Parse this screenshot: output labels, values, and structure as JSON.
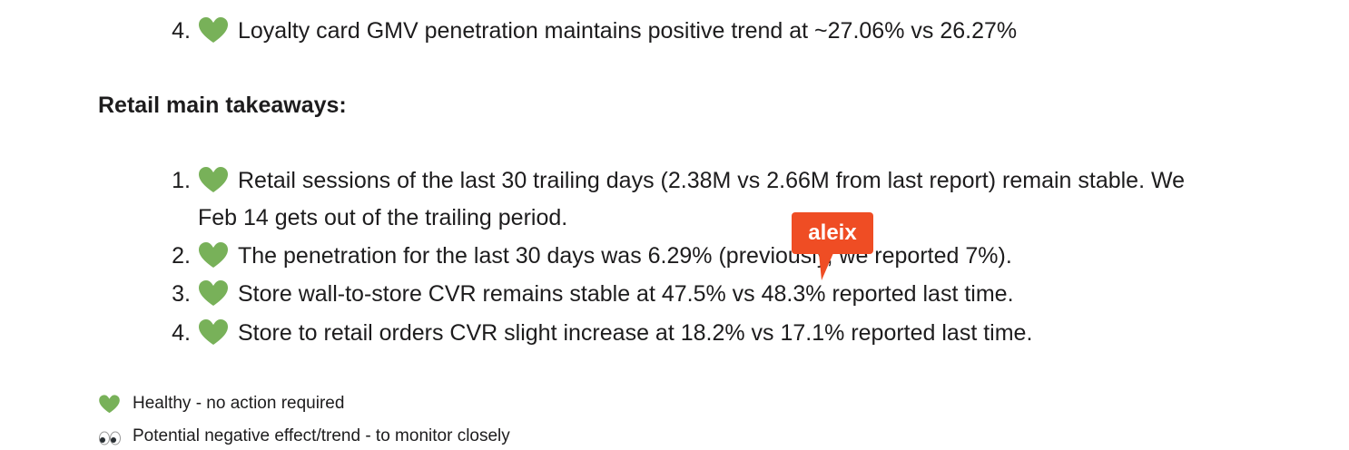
{
  "previous_list": {
    "items": [
      {
        "number": "4.",
        "text": "Loyalty card GMV penetration maintains positive trend at ~27.06% vs 26.27%"
      }
    ]
  },
  "section": {
    "heading": "Retail main takeaways:",
    "items": [
      {
        "number": "1.",
        "lines": [
          "Retail sessions of the last 30 trailing days (2.38M vs 2.66M from last report) remain stable. We",
          "Feb 14 gets out of the trailing period."
        ]
      },
      {
        "number": "2.",
        "lines": [
          "The penetration for the last 30 days was 6.29% (previously, we reported 7%)."
        ]
      },
      {
        "number": "3.",
        "lines": [
          "Store wall-to-store CVR remains stable at 47.5% vs 48.3% reported last time."
        ]
      },
      {
        "number": "4.",
        "lines": [
          "Store to retail orders CVR slight increase at 18.2% vs 17.1% reported last time."
        ]
      }
    ]
  },
  "cursor": {
    "label": "aleix"
  },
  "legend": [
    {
      "text": "Healthy - no action required"
    },
    {
      "text": "Potential negative effect/trend - to monitor closely"
    }
  ]
}
